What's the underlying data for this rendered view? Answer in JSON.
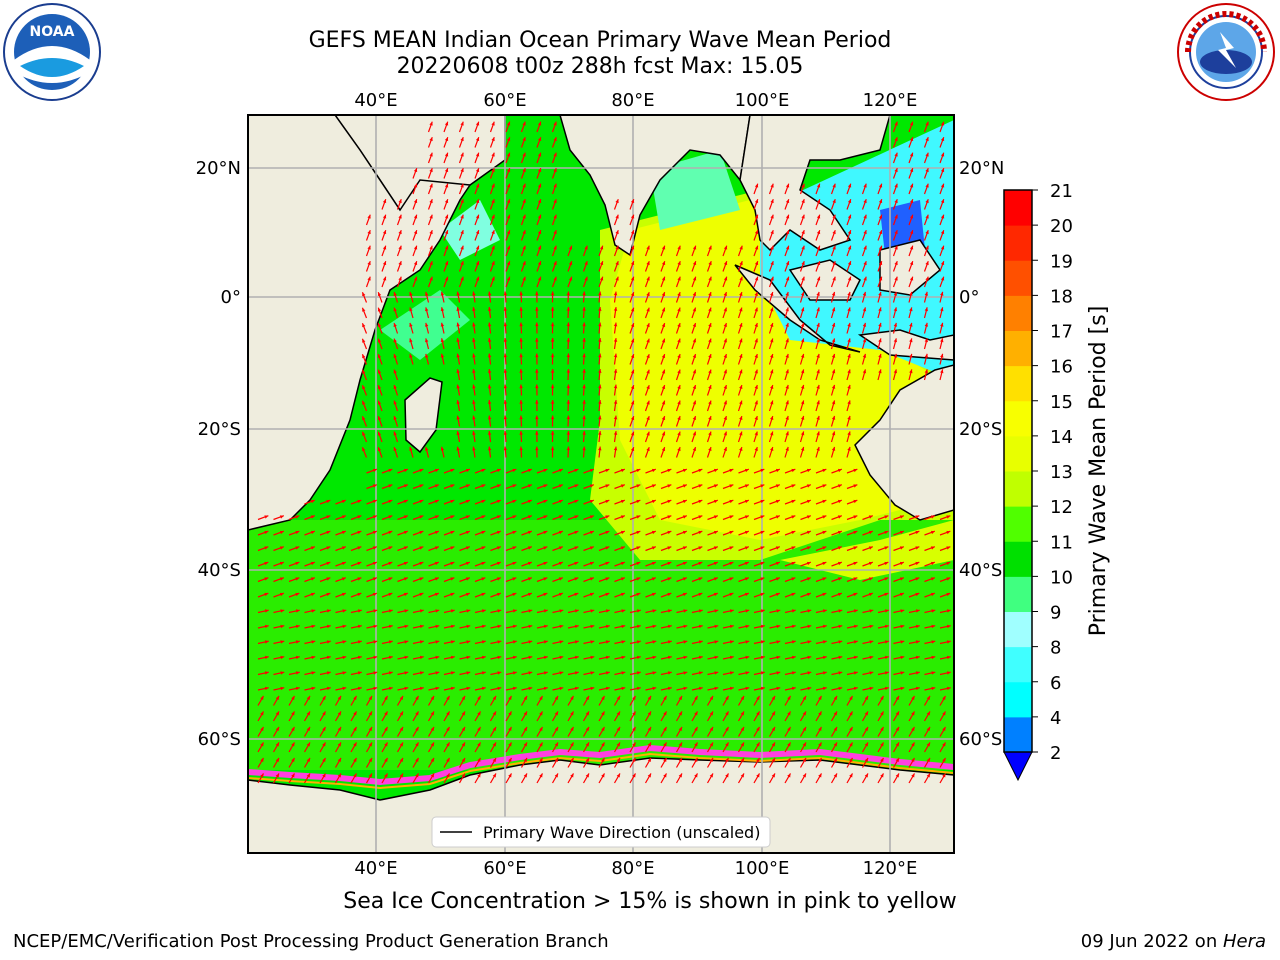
{
  "header": {
    "title_line1": "GEFS MEAN Indian Ocean Primary Wave Mean Period",
    "title_line2": "20220608 t00z 288h fcst   Max: 15.05"
  },
  "logos": {
    "left": {
      "icon": "noaa-logo-icon",
      "text": "NOAA"
    },
    "right": {
      "icon": "nws-logo-icon",
      "text": "NATIONAL WEATHER SERVICE"
    }
  },
  "map": {
    "lon_labels": [
      "40°E",
      "60°E",
      "80°E",
      "100°E",
      "120°E"
    ],
    "lat_labels": [
      "20°N",
      "0°",
      "20°S",
      "40°S",
      "60°S"
    ],
    "legend_label": "Primary Wave Direction (unscaled)",
    "arrow_color": "#ff0000",
    "land_color": "#efedde"
  },
  "colorbar": {
    "label": "Primary Wave Mean Period [s]",
    "ticks": [
      "2",
      "4",
      "6",
      "8",
      "9",
      "10",
      "11",
      "12",
      "13",
      "14",
      "15",
      "16",
      "17",
      "18",
      "19",
      "20",
      "21"
    ],
    "colors": [
      "#0080ff",
      "#00ffff",
      "#40ffff",
      "#a0ffff",
      "#40ff80",
      "#00e000",
      "#50ff00",
      "#c0ff00",
      "#e8ff00",
      "#f8ff00",
      "#ffe000",
      "#ffb000",
      "#ff8000",
      "#ff5000",
      "#ff2800",
      "#ff0000"
    ],
    "extend_color": "#0000ff"
  },
  "footnote": "Sea Ice Concentration > 15% is shown in pink to yellow",
  "footer": {
    "left": "NCEP/EMC/Verification Post Processing Product Generation Branch",
    "right_prefix": "09 Jun 2022 on ",
    "right_host": "Hera"
  }
}
